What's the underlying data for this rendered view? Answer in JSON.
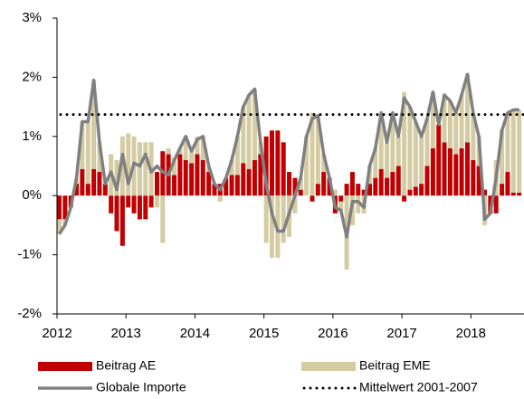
{
  "chart_data": {
    "type": "stacked_bar_line",
    "x": [
      2012.0,
      2012.083,
      2012.167,
      2012.25,
      2012.333,
      2012.417,
      2012.5,
      2012.583,
      2012.667,
      2012.75,
      2012.833,
      2012.917,
      2013.0,
      2013.083,
      2013.167,
      2013.25,
      2013.333,
      2013.417,
      2013.5,
      2013.583,
      2013.667,
      2013.75,
      2013.833,
      2013.917,
      2014.0,
      2014.083,
      2014.167,
      2014.25,
      2014.333,
      2014.417,
      2014.5,
      2014.583,
      2014.667,
      2014.75,
      2014.833,
      2014.917,
      2015.0,
      2015.083,
      2015.167,
      2015.25,
      2015.333,
      2015.417,
      2015.5,
      2015.583,
      2015.667,
      2015.75,
      2015.833,
      2015.917,
      2016.0,
      2016.083,
      2016.167,
      2016.25,
      2016.333,
      2016.417,
      2016.5,
      2016.583,
      2016.667,
      2016.75,
      2016.833,
      2016.917,
      2017.0,
      2017.083,
      2017.167,
      2017.25,
      2017.333,
      2017.417,
      2017.5,
      2017.583,
      2017.667,
      2017.75,
      2017.833,
      2017.917,
      2018.0,
      2018.083,
      2018.167,
      2018.25,
      2018.333,
      2018.417,
      2018.5,
      2018.583,
      2018.667
    ],
    "series": [
      {
        "name": "Beitrag AE",
        "kind": "bar",
        "color": "#c00000",
        "values": [
          -0.4,
          -0.4,
          -0.2,
          0.2,
          0.45,
          0.2,
          0.45,
          0.4,
          0.2,
          -0.3,
          -0.6,
          -0.85,
          -0.2,
          -0.3,
          -0.4,
          -0.4,
          -0.2,
          0.4,
          0.75,
          0.7,
          0.35,
          0.7,
          0.6,
          0.55,
          0.7,
          0.6,
          0.4,
          0.2,
          0.2,
          0.3,
          0.35,
          0.35,
          0.55,
          0.45,
          0.6,
          0.7,
          1.0,
          1.1,
          1.1,
          0.9,
          0.4,
          0.3,
          0.1,
          0,
          -0.1,
          0.2,
          0.4,
          0.3,
          -0.3,
          -0.1,
          0.2,
          0.4,
          0.2,
          0.1,
          0.2,
          0.3,
          0.45,
          0.3,
          0.4,
          0.5,
          -0.1,
          0.1,
          0.15,
          0.2,
          0.5,
          0.8,
          1.2,
          0.9,
          0.8,
          0.7,
          0.8,
          0.9,
          0.6,
          0.5,
          0.1,
          -0.3,
          -0.3,
          0.2,
          0.4,
          0.05,
          0.05
        ]
      },
      {
        "name": "Beitrag EME",
        "kind": "bar",
        "color": "#d4cba3",
        "values": [
          -0.25,
          -0.1,
          0,
          0.1,
          0.8,
          1.05,
          1.5,
          0.5,
          0,
          0.7,
          0.6,
          1.0,
          1.05,
          1.0,
          0.9,
          0.9,
          0.9,
          -0.2,
          -0.8,
          0.1,
          0.3,
          0.1,
          0.4,
          0.2,
          0.3,
          0.4,
          0.1,
          0,
          -0.1,
          0,
          0.25,
          0.65,
          0.95,
          1.25,
          1.2,
          0.2,
          -0.8,
          -1.05,
          -1.05,
          -0.8,
          -0.7,
          -0.3,
          0.2,
          1.0,
          1.4,
          1.15,
          0.3,
          0,
          0.1,
          -0.15,
          -1.25,
          -0.5,
          -0.3,
          -0.3,
          0.3,
          0.5,
          0.9,
          0.6,
          1.0,
          0.5,
          1.75,
          1.4,
          1.1,
          0.8,
          0.8,
          0.95,
          0,
          0.8,
          0.8,
          0.7,
          0.9,
          1.15,
          0.8,
          0.5,
          -0.5,
          0,
          0.6,
          0.9,
          1.0,
          1.4,
          1.4
        ]
      },
      {
        "name": "Globale Importe",
        "kind": "line",
        "color": "#808080",
        "values": [
          -0.65,
          -0.5,
          -0.2,
          0.3,
          1.25,
          1.25,
          1.95,
          0.9,
          0.2,
          0.4,
          0.1,
          0.7,
          0.2,
          0.55,
          0.5,
          0.7,
          0.4,
          0.5,
          0.4,
          0.35,
          0.6,
          0.8,
          1.0,
          0.75,
          0.95,
          1.0,
          0.5,
          0.2,
          0.1,
          0.3,
          0.6,
          1.0,
          1.5,
          1.7,
          1.8,
          0.9,
          0.2,
          -0.3,
          -0.6,
          -0.6,
          -0.3,
          0.0,
          0.3,
          1.0,
          1.3,
          1.35,
          0.7,
          0.3,
          -0.2,
          -0.25,
          -0.7,
          -0.1,
          -0.1,
          -0.2,
          0.5,
          0.8,
          1.4,
          0.9,
          1.4,
          1.0,
          1.65,
          1.5,
          1.25,
          1.0,
          1.3,
          1.75,
          1.2,
          1.7,
          1.6,
          1.4,
          1.7,
          2.05,
          1.4,
          1.0,
          -0.4,
          -0.3,
          0.3,
          1.1,
          1.4,
          1.45,
          1.45
        ]
      },
      {
        "name": "Mittelwert 2001-2007",
        "kind": "hline",
        "color": "#000000",
        "value": 1.37
      }
    ],
    "xlim": [
      2012,
      2018.77
    ],
    "xticks": [
      2012,
      2013,
      2014,
      2015,
      2016,
      2017,
      2018
    ],
    "ylim": [
      -2,
      3
    ],
    "yticks": [
      {
        "value": -2,
        "label": "-2%"
      },
      {
        "value": -1,
        "label": "-1%"
      },
      {
        "value": 0,
        "label": "0%"
      },
      {
        "value": 1,
        "label": "1%"
      },
      {
        "value": 2,
        "label": "2%"
      },
      {
        "value": 3,
        "label": "3%"
      }
    ]
  }
}
